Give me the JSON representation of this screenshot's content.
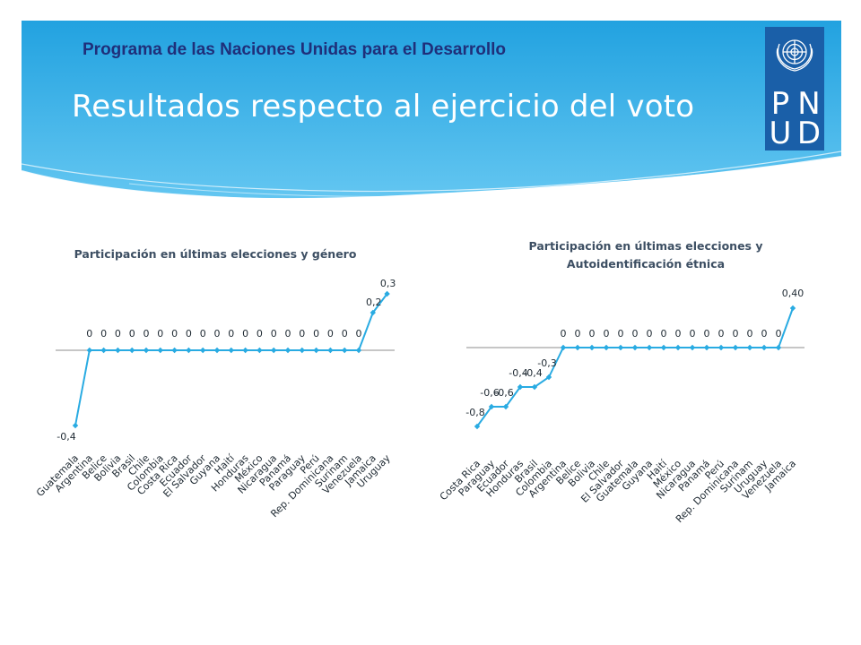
{
  "header": {
    "organization": "Programa de las Naciones Unidas para el Desarrollo",
    "title": "Resultados respecto al ejercicio del voto",
    "logo_letters": [
      "P",
      "N",
      "U",
      "D"
    ]
  },
  "colors": {
    "banner_top": "#22a2e0",
    "banner_bottom": "#63c6f1",
    "logo_blue": "#1a5fa8",
    "series": "#29abe2",
    "axis": "#8c8c8c"
  },
  "chart_data": [
    {
      "type": "line",
      "title": "Participación en últimas elecciones y género",
      "categories": [
        "Guatemala",
        "Argentina",
        "Belice",
        "Bolivia",
        "Brasil",
        "Chile",
        "Colombia",
        "Costa Rica",
        "Ecuador",
        "El Salvador",
        "Guyana",
        "Haití",
        "Honduras",
        "México",
        "Nicaragua",
        "Panamá",
        "Paraguay",
        "Perú",
        "Rep. Dominicana",
        "Surinam",
        "Venezuela",
        "Jamaica",
        "Uruguay"
      ],
      "values": [
        -0.4,
        0,
        0,
        0,
        0,
        0,
        0,
        0,
        0,
        0,
        0,
        0,
        0,
        0,
        0,
        0,
        0,
        0,
        0,
        0,
        0,
        0.2,
        0.3
      ],
      "data_labels": [
        "-0,4",
        "0",
        "0",
        "0",
        "0",
        "0",
        "0",
        "0",
        "0",
        "0",
        "0",
        "0",
        "0",
        "0",
        "0",
        "0",
        "0",
        "0",
        "0",
        "0",
        "0",
        "0,2",
        "0,3"
      ],
      "ylim": [
        -0.4,
        0.3
      ],
      "grid": false,
      "legend": "none"
    },
    {
      "type": "line",
      "title": "Participación en últimas elecciones y Autoidentificación étnica",
      "title_lines": [
        "Participación en últimas elecciones y",
        "Autoidentificación étnica"
      ],
      "categories": [
        "Costa Rica",
        "Paraguay",
        "Ecuador",
        "Honduras",
        "Brasil",
        "Colombia",
        "Argentina",
        "Belice",
        "Bolivia",
        "Chile",
        "El Salvador",
        "Guatemala",
        "Guyana",
        "Haití",
        "México",
        "Nicaragua",
        "Panamá",
        "Perú",
        "Rep. Dominicana",
        "Surinam",
        "Uruguay",
        "Venezuela",
        "Jamaica"
      ],
      "values": [
        -0.8,
        -0.6,
        -0.6,
        -0.4,
        -0.4,
        -0.3,
        0,
        0,
        0,
        0,
        0,
        0,
        0,
        0,
        0,
        0,
        0,
        0,
        0,
        0,
        0,
        0,
        0.4
      ],
      "data_labels": [
        "-0,8",
        "-0,6",
        "-0,6",
        "-0,4",
        "-0,4",
        "-0,3",
        "0",
        "0",
        "0",
        "0",
        "0",
        "0",
        "0",
        "0",
        "0",
        "0",
        "0",
        "0",
        "0",
        "0",
        "0",
        "0",
        "0,40"
      ],
      "ylim": [
        -0.8,
        0.4
      ],
      "grid": false,
      "legend": "none"
    }
  ]
}
